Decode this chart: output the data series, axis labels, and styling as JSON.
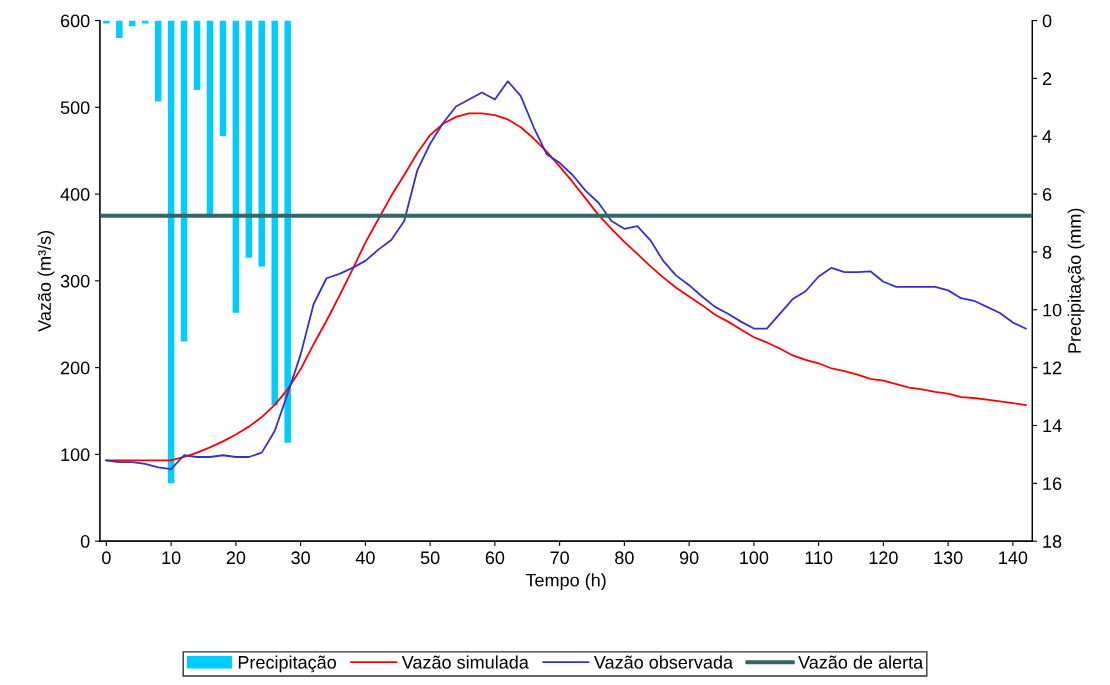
{
  "chart_data": {
    "type": "line",
    "xlabel": "Tempo (h)",
    "ylabel": "Vazão (m³/s)",
    "y2label": "Precipitação (mm)",
    "xlim": [
      -1,
      143
    ],
    "xticks": [
      0,
      10,
      20,
      30,
      40,
      50,
      60,
      70,
      80,
      90,
      100,
      110,
      120,
      130,
      140
    ],
    "ylim": [
      0,
      600
    ],
    "yticks": [
      0,
      100,
      200,
      300,
      400,
      500,
      600
    ],
    "y2lim": [
      18,
      0
    ],
    "y2ticks": [
      0,
      2,
      4,
      6,
      8,
      10,
      12,
      14,
      16,
      18
    ],
    "grid": false,
    "legend": "bottom",
    "marker": "none",
    "line_style": "solid",
    "series": [
      {
        "name": "Precipitação",
        "type": "bar",
        "axis": "y2",
        "color": "#00ccff",
        "x": [
          0,
          2,
          4,
          6,
          8,
          10,
          12,
          14,
          16,
          18,
          20,
          22,
          24,
          26,
          28
        ],
        "values": [
          0.1,
          0.6,
          0.2,
          0.1,
          2.8,
          16.0,
          11.1,
          2.4,
          6.7,
          4.0,
          10.1,
          8.2,
          8.5,
          13.3,
          14.6
        ]
      },
      {
        "name": "Vazão simulada",
        "color": "#ff0000",
        "x": [
          0,
          2,
          4,
          6,
          8,
          10,
          12,
          14,
          16,
          18,
          20,
          22,
          24,
          26,
          28,
          30,
          32,
          34,
          36,
          38,
          40,
          42,
          44,
          46,
          48,
          50,
          52,
          54,
          56,
          58,
          60,
          62,
          64,
          66,
          68,
          70,
          72,
          74,
          76,
          78,
          80,
          82,
          84,
          86,
          88,
          90,
          92,
          94,
          96,
          98,
          100,
          102,
          104,
          106,
          108,
          110,
          112,
          114,
          116,
          118,
          120,
          122,
          124,
          126,
          128,
          130,
          132,
          134,
          136,
          138,
          140,
          142
        ],
        "values": [
          93,
          93,
          93,
          93,
          93,
          93,
          97,
          102,
          108,
          115,
          123,
          132,
          143,
          157,
          175,
          198,
          227,
          254,
          283,
          313,
          344,
          371,
          398,
          422,
          447,
          468,
          481,
          489,
          493,
          493,
          491,
          486,
          477,
          464,
          449,
          432,
          414,
          395,
          376,
          360,
          345,
          331,
          317,
          304,
          292,
          282,
          272,
          261,
          253,
          244,
          235,
          229,
          222,
          214,
          209,
          205,
          199,
          196,
          192,
          187,
          185,
          181,
          177,
          175,
          172,
          170,
          166,
          165,
          163,
          161,
          159,
          157
        ]
      },
      {
        "name": "Vazão observada",
        "color": "#3333cc",
        "x": [
          0,
          2,
          4,
          6,
          8,
          10,
          12,
          14,
          16,
          18,
          20,
          22,
          24,
          26,
          28,
          30,
          32,
          34,
          36,
          38,
          40,
          42,
          44,
          46,
          48,
          50,
          52,
          54,
          56,
          58,
          60,
          62,
          64,
          66,
          68,
          70,
          72,
          74,
          76,
          78,
          80,
          82,
          84,
          86,
          88,
          90,
          92,
          94,
          96,
          98,
          100,
          102,
          104,
          106,
          108,
          110,
          112,
          114,
          116,
          118,
          120,
          122,
          124,
          126,
          128,
          130,
          132,
          134,
          136,
          138,
          140,
          142
        ],
        "values": [
          93,
          91,
          91,
          89,
          85,
          83,
          99,
          97,
          97,
          99,
          97,
          97,
          102,
          127,
          170,
          215,
          273,
          303,
          308,
          315,
          323,
          336,
          347,
          369,
          427,
          458,
          482,
          501,
          509,
          517,
          509,
          530,
          513,
          477,
          446,
          436,
          422,
          404,
          390,
          369,
          360,
          363,
          347,
          323,
          306,
          295,
          282,
          270,
          262,
          253,
          245,
          245,
          262,
          279,
          288,
          305,
          315,
          310,
          310,
          311,
          299,
          293,
          293,
          293,
          293,
          289,
          280,
          277,
          270,
          263,
          252,
          245
        ]
      }
    ],
    "ref_lines": [
      {
        "axis": "y",
        "value": 375,
        "label": "Vazão de alerta",
        "color": "#336666"
      }
    ]
  }
}
